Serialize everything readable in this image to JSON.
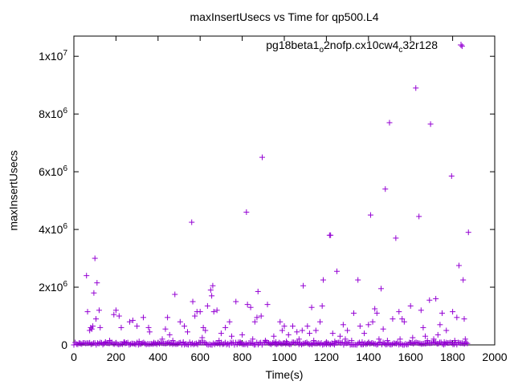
{
  "chart_data": {
    "type": "scatter",
    "title": "maxInsertUsecs vs Time for qp500.L4",
    "xlabel": "Time(s)",
    "ylabel": "maxInsertUsecs",
    "xlim": [
      0,
      2000
    ],
    "ylim": [
      0,
      10700000
    ],
    "x_ticks": [
      0,
      200,
      400,
      600,
      800,
      1000,
      1200,
      1400,
      1600,
      1800,
      2000
    ],
    "y_ticks": [
      {
        "value": 0,
        "mantissa": "0",
        "exponent": ""
      },
      {
        "value": 2000000,
        "mantissa": "2x10",
        "exponent": "6"
      },
      {
        "value": 4000000,
        "mantissa": "4x10",
        "exponent": "6"
      },
      {
        "value": 6000000,
        "mantissa": "6x10",
        "exponent": "6"
      },
      {
        "value": 8000000,
        "mantissa": "8x10",
        "exponent": "6"
      },
      {
        "value": 10000000,
        "mantissa": "1x10",
        "exponent": "7"
      }
    ],
    "grid": false,
    "legend_position": "top-right",
    "series": [
      {
        "name_parts": [
          "pg18beta1",
          "o",
          "2nofp.cx10cw4",
          "c",
          "32r128"
        ],
        "color": "#9400d3",
        "marker": "plus",
        "points": [
          [
            60,
            2400000
          ],
          [
            65,
            1150000
          ],
          [
            75,
            500000
          ],
          [
            80,
            600000
          ],
          [
            85,
            550000
          ],
          [
            90,
            650000
          ],
          [
            95,
            1800000
          ],
          [
            100,
            3000000
          ],
          [
            105,
            900000
          ],
          [
            110,
            2150000
          ],
          [
            120,
            1200000
          ],
          [
            125,
            600000
          ],
          [
            190,
            1050000
          ],
          [
            200,
            1200000
          ],
          [
            215,
            1000000
          ],
          [
            225,
            600000
          ],
          [
            265,
            800000
          ],
          [
            280,
            850000
          ],
          [
            300,
            650000
          ],
          [
            330,
            950000
          ],
          [
            355,
            600000
          ],
          [
            360,
            450000
          ],
          [
            435,
            550000
          ],
          [
            445,
            950000
          ],
          [
            455,
            350000
          ],
          [
            480,
            1750000
          ],
          [
            505,
            800000
          ],
          [
            525,
            650000
          ],
          [
            540,
            450000
          ],
          [
            560,
            4250000
          ],
          [
            565,
            1500000
          ],
          [
            575,
            1000000
          ],
          [
            585,
            1150000
          ],
          [
            600,
            1150000
          ],
          [
            615,
            600000
          ],
          [
            625,
            500000
          ],
          [
            635,
            1350000
          ],
          [
            650,
            1900000
          ],
          [
            655,
            1700000
          ],
          [
            660,
            2050000
          ],
          [
            665,
            1150000
          ],
          [
            680,
            1200000
          ],
          [
            700,
            400000
          ],
          [
            720,
            600000
          ],
          [
            740,
            800000
          ],
          [
            770,
            1500000
          ],
          [
            800,
            350000
          ],
          [
            820,
            4600000
          ],
          [
            825,
            1400000
          ],
          [
            840,
            1300000
          ],
          [
            860,
            800000
          ],
          [
            870,
            950000
          ],
          [
            875,
            1850000
          ],
          [
            890,
            1000000
          ],
          [
            895,
            6500000
          ],
          [
            920,
            1400000
          ],
          [
            950,
            300000
          ],
          [
            980,
            800000
          ],
          [
            990,
            500000
          ],
          [
            1000,
            650000
          ],
          [
            1020,
            350000
          ],
          [
            1040,
            650000
          ],
          [
            1060,
            450000
          ],
          [
            1085,
            500000
          ],
          [
            1090,
            2050000
          ],
          [
            1110,
            650000
          ],
          [
            1120,
            400000
          ],
          [
            1130,
            1300000
          ],
          [
            1150,
            500000
          ],
          [
            1170,
            800000
          ],
          [
            1180,
            1350000
          ],
          [
            1185,
            2250000
          ],
          [
            1215,
            3800000
          ],
          [
            1220,
            3800000
          ],
          [
            1230,
            400000
          ],
          [
            1250,
            2550000
          ],
          [
            1265,
            300000
          ],
          [
            1280,
            700000
          ],
          [
            1300,
            500000
          ],
          [
            1330,
            1100000
          ],
          [
            1350,
            2250000
          ],
          [
            1360,
            650000
          ],
          [
            1380,
            400000
          ],
          [
            1400,
            700000
          ],
          [
            1410,
            4500000
          ],
          [
            1420,
            800000
          ],
          [
            1430,
            1250000
          ],
          [
            1440,
            1100000
          ],
          [
            1460,
            1950000
          ],
          [
            1470,
            550000
          ],
          [
            1480,
            5400000
          ],
          [
            1500,
            7700000
          ],
          [
            1515,
            900000
          ],
          [
            1530,
            3700000
          ],
          [
            1545,
            1150000
          ],
          [
            1560,
            900000
          ],
          [
            1570,
            800000
          ],
          [
            1600,
            1350000
          ],
          [
            1625,
            8900000
          ],
          [
            1640,
            4450000
          ],
          [
            1650,
            1200000
          ],
          [
            1660,
            600000
          ],
          [
            1670,
            300000
          ],
          [
            1690,
            1550000
          ],
          [
            1695,
            7650000
          ],
          [
            1720,
            1600000
          ],
          [
            1730,
            350000
          ],
          [
            1740,
            700000
          ],
          [
            1750,
            1100000
          ],
          [
            1770,
            500000
          ],
          [
            1795,
            5850000
          ],
          [
            1800,
            1150000
          ],
          [
            1820,
            950000
          ],
          [
            1830,
            2750000
          ],
          [
            1845,
            10350000
          ],
          [
            1850,
            2250000
          ],
          [
            1855,
            900000
          ],
          [
            1875,
            3900000
          ],
          [
            30,
            50000
          ],
          [
            150,
            100000
          ],
          [
            170,
            150000
          ],
          [
            240,
            100000
          ],
          [
            310,
            120000
          ],
          [
            380,
            80000
          ],
          [
            420,
            200000
          ],
          [
            470,
            150000
          ],
          [
            520,
            100000
          ],
          [
            610,
            250000
          ],
          [
            690,
            150000
          ],
          [
            750,
            300000
          ],
          [
            790,
            100000
          ],
          [
            850,
            200000
          ],
          [
            910,
            150000
          ],
          [
            960,
            100000
          ],
          [
            1010,
            120000
          ],
          [
            1070,
            200000
          ],
          [
            1140,
            150000
          ],
          [
            1200,
            100000
          ],
          [
            1240,
            120000
          ],
          [
            1290,
            200000
          ],
          [
            1320,
            150000
          ],
          [
            1370,
            100000
          ],
          [
            1450,
            200000
          ],
          [
            1490,
            150000
          ],
          [
            1550,
            200000
          ],
          [
            1610,
            250000
          ],
          [
            1680,
            150000
          ],
          [
            1710,
            200000
          ],
          [
            1760,
            100000
          ],
          [
            1810,
            150000
          ],
          [
            1860,
            200000
          ]
        ]
      }
    ],
    "baseline_band": {
      "x_from": 0,
      "x_to": 1870,
      "y_from": 0,
      "y_to": 90000,
      "count": 300
    }
  }
}
